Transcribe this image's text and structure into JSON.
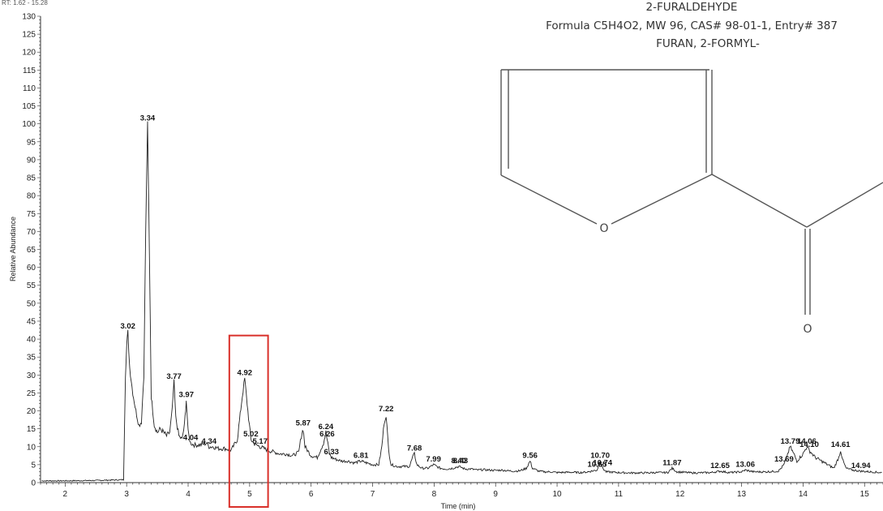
{
  "header_fragment": "RT: 1.62 - 15.28",
  "structure": {
    "name": "2-FURALDEHYDE",
    "formula_line": "Formula C5H4O2, MW 96, CAS# 98-01-1, Entry# 387",
    "synonym": "FURAN, 2-FORMYL-",
    "ring_oxygen": "O",
    "carbonyl_oxygen": "O"
  },
  "highlight_color": "#d9302a",
  "chart_data": {
    "type": "line",
    "title": "",
    "xlabel": "Time (min)",
    "ylabel": "Relative Abundance",
    "xlim": [
      1.6,
      15.3
    ],
    "ylim": [
      0,
      130
    ],
    "x_ticks": [
      2,
      3,
      4,
      5,
      6,
      7,
      8,
      9,
      10,
      11,
      12,
      13,
      14,
      15
    ],
    "y_ticks": [
      0,
      5,
      10,
      15,
      20,
      25,
      30,
      35,
      40,
      45,
      50,
      55,
      60,
      65,
      70,
      75,
      80,
      85,
      90,
      95,
      100,
      105,
      110,
      115,
      120,
      125,
      130
    ],
    "line_color": "#222222",
    "highlight_range": {
      "x": [
        4.67,
        5.3
      ],
      "y": [
        0,
        41
      ]
    },
    "points": [
      [
        1.62,
        0.5
      ],
      [
        2.0,
        0.5
      ],
      [
        2.5,
        0.6
      ],
      [
        2.95,
        0.8
      ],
      [
        2.98,
        30
      ],
      [
        3.0,
        38
      ],
      [
        3.02,
        42
      ],
      [
        3.05,
        32
      ],
      [
        3.1,
        25
      ],
      [
        3.15,
        20
      ],
      [
        3.2,
        16
      ],
      [
        3.24,
        17
      ],
      [
        3.28,
        30
      ],
      [
        3.31,
        70
      ],
      [
        3.34,
        100
      ],
      [
        3.37,
        65
      ],
      [
        3.4,
        24
      ],
      [
        3.45,
        16
      ],
      [
        3.5,
        14
      ],
      [
        3.55,
        15
      ],
      [
        3.6,
        14
      ],
      [
        3.65,
        13
      ],
      [
        3.7,
        14
      ],
      [
        3.74,
        20
      ],
      [
        3.77,
        28
      ],
      [
        3.8,
        18
      ],
      [
        3.85,
        13
      ],
      [
        3.9,
        12
      ],
      [
        3.94,
        16
      ],
      [
        3.97,
        23
      ],
      [
        4.0,
        14
      ],
      [
        4.04,
        11
      ],
      [
        4.1,
        10.5
      ],
      [
        4.2,
        10.5
      ],
      [
        4.3,
        11
      ],
      [
        4.34,
        10
      ],
      [
        4.4,
        10
      ],
      [
        4.5,
        9.5
      ],
      [
        4.6,
        9.5
      ],
      [
        4.7,
        9
      ],
      [
        4.8,
        12
      ],
      [
        4.88,
        24
      ],
      [
        4.92,
        29
      ],
      [
        4.96,
        22
      ],
      [
        5.02,
        12
      ],
      [
        5.1,
        10.5
      ],
      [
        5.17,
        10
      ],
      [
        5.3,
        9
      ],
      [
        5.4,
        8.5
      ],
      [
        5.5,
        8
      ],
      [
        5.6,
        8
      ],
      [
        5.7,
        7.5
      ],
      [
        5.8,
        8.5
      ],
      [
        5.84,
        13
      ],
      [
        5.87,
        15
      ],
      [
        5.9,
        10
      ],
      [
        6.0,
        7.5
      ],
      [
        6.1,
        7
      ],
      [
        6.2,
        11
      ],
      [
        6.24,
        14
      ],
      [
        6.26,
        12
      ],
      [
        6.3,
        8
      ],
      [
        6.33,
        7
      ],
      [
        6.4,
        6.5
      ],
      [
        6.5,
        6
      ],
      [
        6.6,
        6
      ],
      [
        6.7,
        5.5
      ],
      [
        6.81,
        6
      ],
      [
        6.9,
        5.5
      ],
      [
        7.0,
        5
      ],
      [
        7.1,
        5
      ],
      [
        7.15,
        10
      ],
      [
        7.19,
        17
      ],
      [
        7.22,
        19
      ],
      [
        7.26,
        9
      ],
      [
        7.3,
        5
      ],
      [
        7.4,
        4.5
      ],
      [
        7.5,
        4.5
      ],
      [
        7.6,
        4.5
      ],
      [
        7.65,
        7
      ],
      [
        7.68,
        8
      ],
      [
        7.72,
        5
      ],
      [
        7.8,
        4
      ],
      [
        7.9,
        4
      ],
      [
        7.99,
        5
      ],
      [
        8.1,
        4
      ],
      [
        8.2,
        3.8
      ],
      [
        8.3,
        4
      ],
      [
        8.4,
        4.5
      ],
      [
        8.5,
        3.8
      ],
      [
        8.6,
        3.8
      ],
      [
        8.7,
        3.5
      ],
      [
        8.8,
        3.6
      ],
      [
        8.9,
        3.5
      ],
      [
        9.0,
        3.4
      ],
      [
        9.1,
        3.5
      ],
      [
        9.2,
        3.3
      ],
      [
        9.3,
        3.2
      ],
      [
        9.4,
        3.3
      ],
      [
        9.5,
        4
      ],
      [
        9.56,
        6
      ],
      [
        9.6,
        4
      ],
      [
        9.7,
        3.2
      ],
      [
        9.8,
        3
      ],
      [
        9.9,
        3
      ],
      [
        10.0,
        2.8
      ],
      [
        10.2,
        2.9
      ],
      [
        10.4,
        2.8
      ],
      [
        10.5,
        3
      ],
      [
        10.65,
        3.5
      ],
      [
        10.7,
        6
      ],
      [
        10.74,
        4
      ],
      [
        10.8,
        3
      ],
      [
        11.0,
        2.8
      ],
      [
        11.2,
        2.7
      ],
      [
        11.4,
        2.7
      ],
      [
        11.6,
        2.8
      ],
      [
        11.8,
        2.8
      ],
      [
        11.87,
        4
      ],
      [
        11.95,
        3
      ],
      [
        12.2,
        2.7
      ],
      [
        12.5,
        2.8
      ],
      [
        12.65,
        3.2
      ],
      [
        12.8,
        2.8
      ],
      [
        13.0,
        3
      ],
      [
        13.06,
        3.5
      ],
      [
        13.2,
        3
      ],
      [
        13.4,
        3
      ],
      [
        13.6,
        3.2
      ],
      [
        13.69,
        5
      ],
      [
        13.75,
        8
      ],
      [
        13.79,
        10
      ],
      [
        13.85,
        8
      ],
      [
        13.9,
        6
      ],
      [
        14.0,
        8
      ],
      [
        14.06,
        10
      ],
      [
        14.1,
        9
      ],
      [
        14.2,
        7
      ],
      [
        14.3,
        6
      ],
      [
        14.4,
        5
      ],
      [
        14.5,
        4
      ],
      [
        14.58,
        7
      ],
      [
        14.61,
        9
      ],
      [
        14.65,
        6
      ],
      [
        14.7,
        4
      ],
      [
        14.8,
        3.5
      ],
      [
        14.94,
        3.2
      ],
      [
        15.1,
        3
      ],
      [
        15.28,
        2.8
      ]
    ],
    "annotations": [
      {
        "label": "3.02",
        "x": 3.02,
        "y": 42
      },
      {
        "label": "3.34",
        "x": 3.34,
        "y": 100
      },
      {
        "label": "3.77",
        "x": 3.77,
        "y": 28
      },
      {
        "label": "3.97",
        "x": 3.97,
        "y": 23
      },
      {
        "label": "4.04",
        "x": 4.04,
        "y": 11
      },
      {
        "label": "4.34",
        "x": 4.34,
        "y": 10
      },
      {
        "label": "4.92",
        "x": 4.92,
        "y": 29
      },
      {
        "label": "5.02",
        "x": 5.02,
        "y": 12
      },
      {
        "label": "5.17",
        "x": 5.17,
        "y": 10
      },
      {
        "label": "5.87",
        "x": 5.87,
        "y": 15
      },
      {
        "label": "6.24",
        "x": 6.24,
        "y": 14
      },
      {
        "label": "6.26",
        "x": 6.26,
        "y": 12
      },
      {
        "label": "6.33",
        "x": 6.33,
        "y": 7
      },
      {
        "label": "6.81",
        "x": 6.81,
        "y": 6
      },
      {
        "label": "7.22",
        "x": 7.22,
        "y": 19
      },
      {
        "label": "7.68",
        "x": 7.68,
        "y": 8
      },
      {
        "label": "7.99",
        "x": 7.99,
        "y": 5
      },
      {
        "label": "8.40",
        "x": 8.4,
        "y": 4.5
      },
      {
        "label": "8.43",
        "x": 8.43,
        "y": 4.5
      },
      {
        "label": "9.56",
        "x": 9.56,
        "y": 6
      },
      {
        "label": "10.65",
        "x": 10.65,
        "y": 3.5
      },
      {
        "label": "10.70",
        "x": 10.7,
        "y": 6
      },
      {
        "label": "10.74",
        "x": 10.74,
        "y": 4
      },
      {
        "label": "11.87",
        "x": 11.87,
        "y": 4
      },
      {
        "label": "12.65",
        "x": 12.65,
        "y": 3.2
      },
      {
        "label": "13.06",
        "x": 13.06,
        "y": 3.5
      },
      {
        "label": "13.69",
        "x": 13.69,
        "y": 5
      },
      {
        "label": "13.79",
        "x": 13.79,
        "y": 10
      },
      {
        "label": "14.06",
        "x": 14.06,
        "y": 10
      },
      {
        "label": "14.10",
        "x": 14.1,
        "y": 9
      },
      {
        "label": "14.61",
        "x": 14.61,
        "y": 9
      },
      {
        "label": "14.94",
        "x": 14.94,
        "y": 3.2
      }
    ]
  }
}
